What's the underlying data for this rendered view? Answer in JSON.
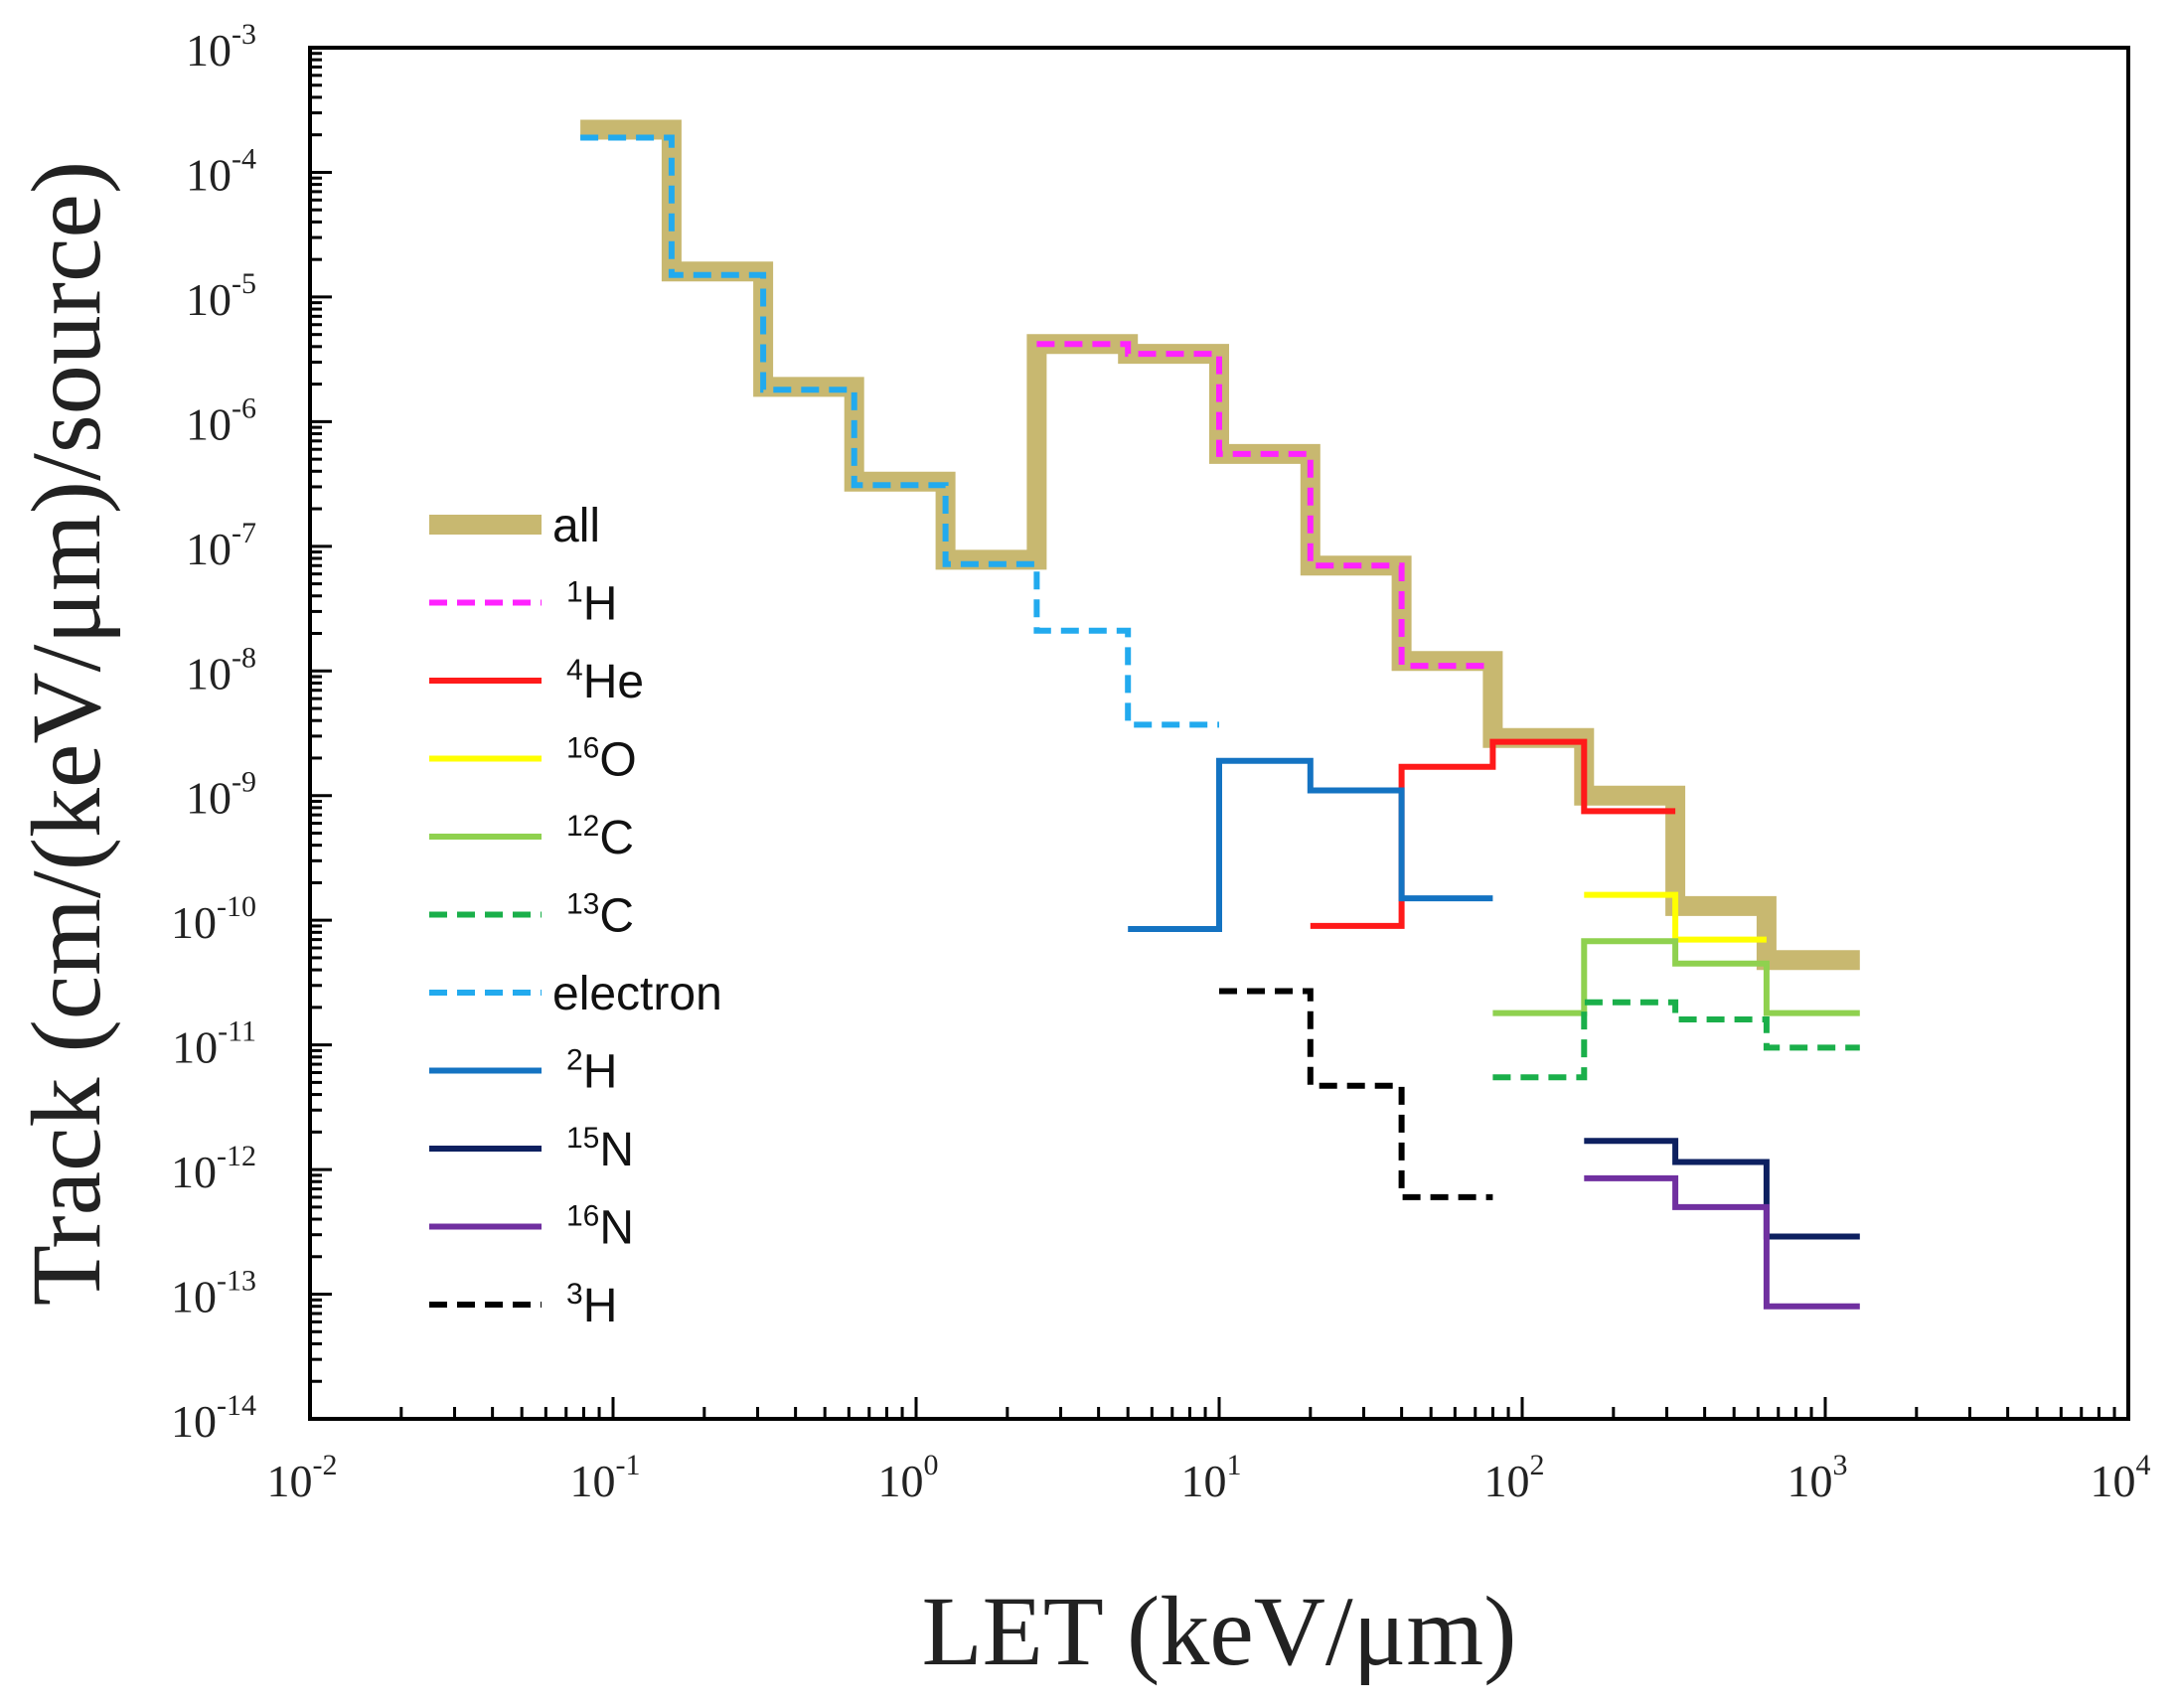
{
  "chart_data": {
    "type": "line",
    "step": true,
    "xscale": "log",
    "yscale": "log",
    "xlabel": "LET (keV/μm)",
    "ylabel": "Track (cm/(keV/μm)/source)",
    "xlim": [
      0.01,
      10000
    ],
    "ylim": [
      1e-14,
      0.001
    ],
    "legend_position": "left-center",
    "xticks": [
      {
        "base": "10",
        "exp": "-2",
        "value": 0.01
      },
      {
        "base": "10",
        "exp": "-1",
        "value": 0.1
      },
      {
        "base": "10",
        "exp": "0",
        "value": 1
      },
      {
        "base": "10",
        "exp": "1",
        "value": 10
      },
      {
        "base": "10",
        "exp": "2",
        "value": 100
      },
      {
        "base": "10",
        "exp": "3",
        "value": 1000
      },
      {
        "base": "10",
        "exp": "4",
        "value": 10000
      }
    ],
    "yticks": [
      {
        "base": "10",
        "exp": "-3",
        "value": 0.001
      },
      {
        "base": "10",
        "exp": "-4",
        "value": 0.0001
      },
      {
        "base": "10",
        "exp": "-5",
        "value": 1e-05
      },
      {
        "base": "10",
        "exp": "-6",
        "value": 1e-06
      },
      {
        "base": "10",
        "exp": "-7",
        "value": 1e-07
      },
      {
        "base": "10",
        "exp": "-8",
        "value": 1e-08
      },
      {
        "base": "10",
        "exp": "-9",
        "value": 1e-09
      },
      {
        "base": "10",
        "exp": "-10",
        "value": 1e-10
      },
      {
        "base": "10",
        "exp": "-11",
        "value": 1e-11
      },
      {
        "base": "10",
        "exp": "-12",
        "value": 1e-12
      },
      {
        "base": "10",
        "exp": "-13",
        "value": 1e-13
      },
      {
        "base": "10",
        "exp": "-14",
        "value": 1e-14
      }
    ],
    "series": [
      {
        "key": "all",
        "name": "all",
        "label": "all",
        "sup": "",
        "color": "#c8b870",
        "style": "solid",
        "weight": "thick",
        "edges": [
          0.078,
          0.156,
          0.313,
          0.625,
          1.25,
          2.5,
          5,
          10,
          20,
          40,
          80,
          160,
          320,
          640,
          1300
        ],
        "values": [
          0.00022,
          1.6e-05,
          1.9e-06,
          3.3e-07,
          7.8e-08,
          4.2e-06,
          3.5e-06,
          5.5e-07,
          7e-08,
          1.2e-08,
          2.9e-09,
          1e-09,
          1.3e-10,
          4.8e-11
        ]
      },
      {
        "key": "h1",
        "name": "1H",
        "label": "H",
        "sup": "1",
        "color": "#ff22ff",
        "style": "dashed",
        "weight": "normal",
        "edges": [
          2.5,
          5,
          10,
          20,
          40,
          80
        ],
        "values": [
          4.2e-06,
          3.5e-06,
          5.5e-07,
          7e-08,
          1.1e-08
        ]
      },
      {
        "key": "he4",
        "name": "4He",
        "label": "He",
        "sup": "4",
        "color": "#ff1a1a",
        "style": "solid",
        "weight": "normal",
        "edges": [
          20,
          40,
          80,
          160,
          320
        ],
        "values": [
          9e-11,
          1.7e-09,
          2.7e-09,
          7.5e-10
        ]
      },
      {
        "key": "o16",
        "name": "16O",
        "label": "O",
        "sup": "16",
        "color": "#ffff00",
        "style": "solid",
        "weight": "normal",
        "edges": [
          160,
          320,
          640
        ],
        "values": [
          1.6e-10,
          7e-11
        ]
      },
      {
        "key": "c12",
        "name": "12C",
        "label": "C",
        "sup": "12",
        "color": "#8fd14f",
        "style": "solid",
        "weight": "normal",
        "edges": [
          80,
          160,
          320,
          640,
          1300
        ],
        "values": [
          1.8e-11,
          6.8e-11,
          4.5e-11,
          1.8e-11
        ]
      },
      {
        "key": "c13",
        "name": "13C",
        "label": "C",
        "sup": "13",
        "color": "#1aaf4a",
        "style": "dashed",
        "weight": "normal",
        "edges": [
          80,
          160,
          320,
          640,
          1300
        ],
        "values": [
          5.5e-12,
          2.2e-11,
          1.6e-11,
          9.5e-12
        ]
      },
      {
        "key": "electron",
        "name": "electron",
        "label": "electron",
        "sup": "",
        "color": "#22aaee",
        "style": "dashed",
        "weight": "normal",
        "edges": [
          0.078,
          0.156,
          0.313,
          0.625,
          1.25,
          2.5,
          5,
          10
        ],
        "values": [
          0.00019,
          1.5e-05,
          1.8e-06,
          3.1e-07,
          7.2e-08,
          2.1e-08,
          3.7e-09
        ]
      },
      {
        "key": "h2",
        "name": "2H",
        "label": "H",
        "sup": "2",
        "color": "#1473c2",
        "style": "solid",
        "weight": "normal",
        "edges": [
          5,
          10,
          20,
          40,
          80
        ],
        "values": [
          8.5e-11,
          1.9e-09,
          1.1e-09,
          1.5e-10
        ]
      },
      {
        "key": "n15",
        "name": "15N",
        "label": "N",
        "sup": "15",
        "color": "#0d2060",
        "style": "solid",
        "weight": "normal",
        "edges": [
          160,
          320,
          640,
          1300
        ],
        "values": [
          1.7e-12,
          1.15e-12,
          2.9e-13
        ]
      },
      {
        "key": "n16",
        "name": "16N",
        "label": "N",
        "sup": "16",
        "color": "#7030a0",
        "style": "solid",
        "weight": "normal",
        "edges": [
          160,
          320,
          640,
          1300
        ],
        "values": [
          8.5e-13,
          5e-13,
          8e-14
        ]
      },
      {
        "key": "h3",
        "name": "3H",
        "label": "H",
        "sup": "3",
        "color": "#000000",
        "style": "dashed",
        "weight": "normal",
        "edges": [
          10,
          20,
          40,
          80
        ],
        "values": [
          2.7e-11,
          4.7e-12,
          6e-13
        ]
      }
    ]
  }
}
